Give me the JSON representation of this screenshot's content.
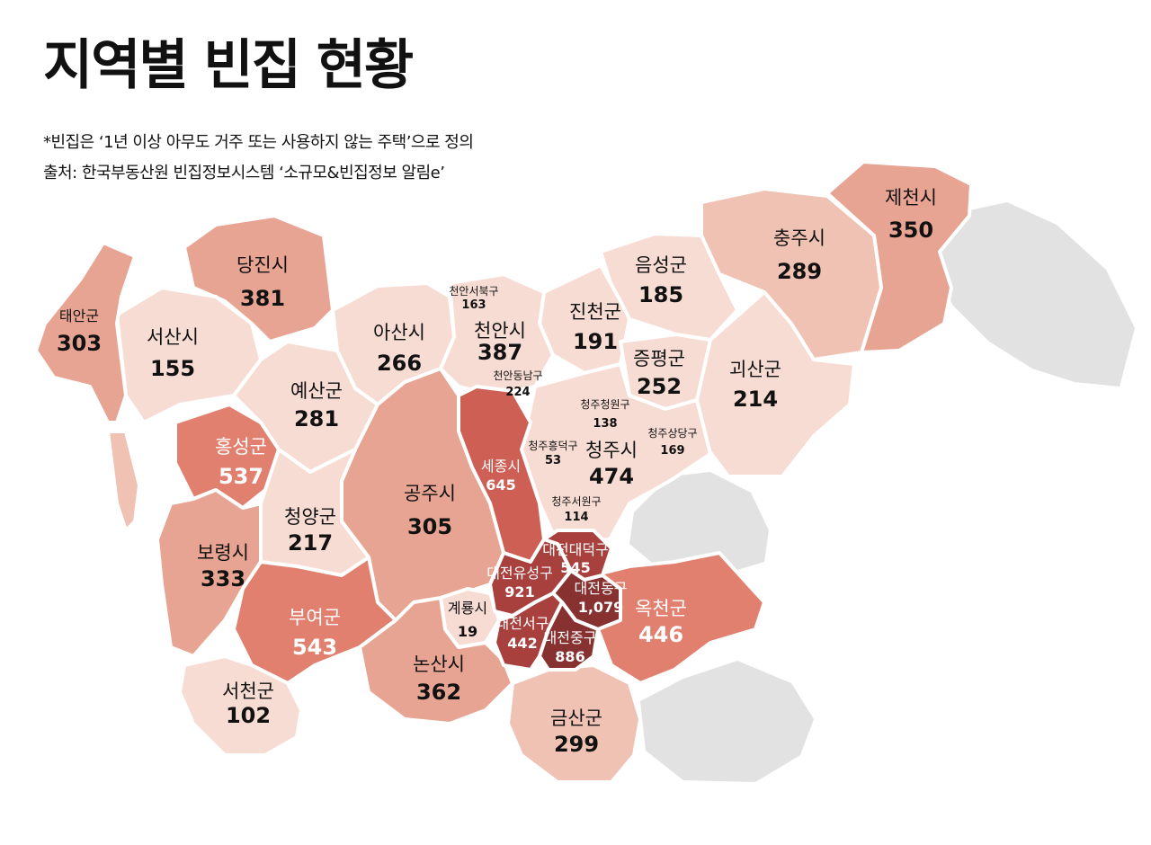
{
  "title": "지역별 빈집 현황",
  "note": "*빈집은 ‘1년 이상 아무도 거주 또는 사용하지 않는 주택’으로 정의",
  "source": "출처: 한국부동산원 빈집정보시스템 ‘소규모&빈집정보 알림e’",
  "colors": {
    "level1": "#f7dcd3",
    "level2": "#f0c2b3",
    "level3": "#e8a493",
    "level4": "#e2806f",
    "level5": "#cd5f54",
    "level6": "#a8403d",
    "level7": "#873130",
    "outside": "#e2e2e2",
    "border": "#ffffff"
  },
  "regions": {
    "taean": {
      "name": "태안군",
      "value": "303"
    },
    "seosan": {
      "name": "서산시",
      "value": "155"
    },
    "dangjin": {
      "name": "당진시",
      "value": "381"
    },
    "asan": {
      "name": "아산시",
      "value": "266"
    },
    "cheonan_seobuk": {
      "name": "천안서북구",
      "value": "163"
    },
    "cheonan": {
      "name": "천안시",
      "value": "387"
    },
    "cheonan_dongnam": {
      "name": "천안동남구",
      "value": "224"
    },
    "jincheon": {
      "name": "진천군",
      "value": "191"
    },
    "eumseong": {
      "name": "음성군",
      "value": "185"
    },
    "chungju": {
      "name": "충주시",
      "value": "289"
    },
    "jecheon": {
      "name": "제천시",
      "value": "350"
    },
    "jeungpyeong": {
      "name": "증평군",
      "value": "252"
    },
    "goesan": {
      "name": "괴산군",
      "value": "214"
    },
    "yesan": {
      "name": "예산군",
      "value": "281"
    },
    "hongseong": {
      "name": "홍성군",
      "value": "537"
    },
    "sejong": {
      "name": "세종시",
      "value": "645"
    },
    "cheongju_cheongwon": {
      "name": "청주청원구",
      "value": "138"
    },
    "cheongju_heungdeok": {
      "name": "청주흥덕구",
      "value": "53"
    },
    "cheongju": {
      "name": "청주시",
      "value": "474"
    },
    "cheongju_sangdang": {
      "name": "청주상당구",
      "value": "169"
    },
    "cheongju_seowon": {
      "name": "청주서원구",
      "value": "114"
    },
    "gongju": {
      "name": "공주시",
      "value": "305"
    },
    "cheongyang": {
      "name": "청양군",
      "value": "217"
    },
    "boryeong": {
      "name": "보령시",
      "value": "333"
    },
    "buyeo": {
      "name": "부여군",
      "value": "543"
    },
    "gyeryong": {
      "name": "계룡시",
      "value": "19"
    },
    "nonsan": {
      "name": "논산시",
      "value": "362"
    },
    "seocheon": {
      "name": "서천군",
      "value": "102"
    },
    "daejeon_daedeok": {
      "name": "대전대덕구",
      "value": "545"
    },
    "daejeon_yuseong": {
      "name": "대전유성구",
      "value": "921"
    },
    "daejeon_dong": {
      "name": "대전동구",
      "value": "1,079"
    },
    "daejeon_seo": {
      "name": "대전서구",
      "value": "442"
    },
    "daejeon_jung": {
      "name": "대전중구",
      "value": "886"
    },
    "okcheon": {
      "name": "옥천군",
      "value": "446"
    },
    "geumsan": {
      "name": "금산군",
      "value": "299"
    }
  }
}
